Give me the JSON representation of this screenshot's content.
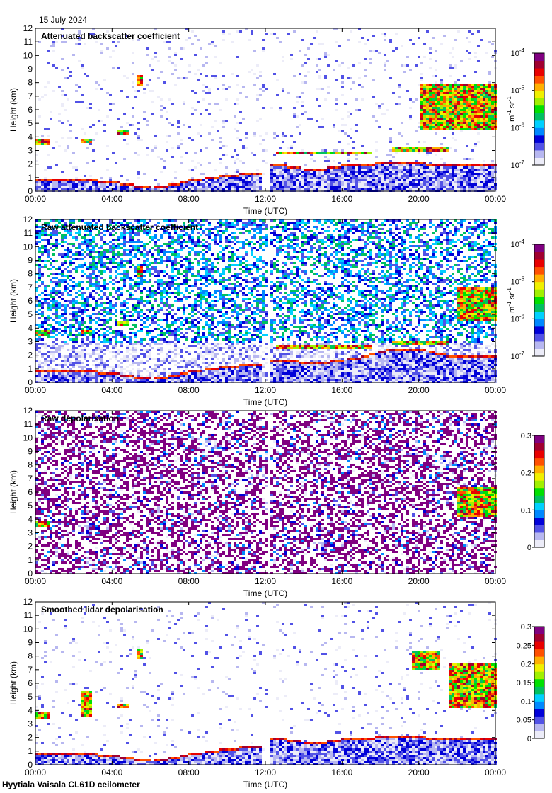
{
  "header": {
    "date": "15 July 2024"
  },
  "footer": {
    "instrument": "Hyytiala Vaisala CL61D ceilometer"
  },
  "colors": {
    "scale": [
      "#ececf8",
      "#b7b7f0",
      "#5252e6",
      "#0000d8",
      "#0088ff",
      "#00d0ff",
      "#00c060",
      "#00e000",
      "#a0f000",
      "#f0f000",
      "#ffb000",
      "#ff5000",
      "#e80000",
      "#a00030",
      "#800080"
    ],
    "gap": "#ffffff"
  },
  "chart_data": [
    {
      "type": "heatmap",
      "title": "Attenuated backscatter coefficient",
      "xlabel": "Time (UTC)",
      "ylabel": "Height (km)",
      "x_ticks": [
        "00:00",
        "04:00",
        "08:00",
        "12:00",
        "16:00",
        "20:00",
        "00:00"
      ],
      "y_ticks": [
        0,
        1,
        2,
        3,
        4,
        5,
        6,
        7,
        8,
        9,
        10,
        11,
        12
      ],
      "ylim": [
        0,
        12
      ],
      "colorbar": {
        "scale": "log",
        "range": [
          1e-07,
          0.0001
        ],
        "ticks": [
          "10",
          "10",
          "10",
          "10"
        ],
        "tick_exponents": [
          "-4",
          "-5",
          "-6",
          "-7"
        ],
        "unit": "m",
        "unit_exp": "-1",
        "unit_b": "sr",
        "unit_b_exp": "-1"
      },
      "features": [
        {
          "kind": "boundary_layer",
          "x": [
            0,
            2,
            3,
            4,
            5,
            6,
            7,
            8,
            9,
            10,
            11,
            11.8
          ],
          "y": [
            1.0,
            1.0,
            0.9,
            0.8,
            0.6,
            0.4,
            0.6,
            0.9,
            1.1,
            1.3,
            1.4,
            1.4
          ]
        },
        {
          "kind": "boundary_layer",
          "x": [
            12,
            13,
            14,
            15,
            16,
            17,
            18,
            19,
            20,
            21,
            22,
            23,
            24
          ],
          "y": [
            2.0,
            2.0,
            1.8,
            1.8,
            2.0,
            2.0,
            2.2,
            2.2,
            2.2,
            2.0,
            2.0,
            2.0,
            2.0
          ]
        },
        {
          "kind": "cloud",
          "x": [
            0,
            0.7
          ],
          "y": [
            3.5,
            4.0
          ]
        },
        {
          "kind": "cloud",
          "x": [
            2.3,
            2.9
          ],
          "y": [
            3.6,
            4.0
          ]
        },
        {
          "kind": "cloud",
          "x": [
            4.2,
            4.8
          ],
          "y": [
            4.3,
            4.6
          ]
        },
        {
          "kind": "cloud",
          "x": [
            5.2,
            5.6
          ],
          "y": [
            7.8,
            8.6
          ]
        },
        {
          "kind": "cloud",
          "x": [
            12.5,
            17.5
          ],
          "y": [
            2.8,
            3.0
          ]
        },
        {
          "kind": "cloud",
          "x": [
            18.5,
            21.5
          ],
          "y": [
            3.0,
            3.3
          ]
        },
        {
          "kind": "cloud",
          "x": [
            20.0,
            24.0
          ],
          "y": [
            4.5,
            8.0
          ]
        }
      ],
      "data_gap": [
        12.0,
        12.1
      ],
      "noise_level": 0.15
    },
    {
      "type": "heatmap",
      "title": "Raw attenuated backscatter coefficient",
      "xlabel": "Time (UTC)",
      "ylabel": "Height (km)",
      "x_ticks": [
        "00:00",
        "04:00",
        "08:00",
        "12:00",
        "16:00",
        "20:00",
        "00:00"
      ],
      "y_ticks": [
        0,
        1,
        2,
        3,
        4,
        5,
        6,
        7,
        8,
        9,
        10,
        11,
        12
      ],
      "ylim": [
        0,
        12
      ],
      "colorbar": {
        "scale": "log",
        "range": [
          1e-07,
          0.0001
        ],
        "ticks": [
          "10",
          "10",
          "10",
          "10"
        ],
        "tick_exponents": [
          "-4",
          "-5",
          "-6",
          "-7"
        ],
        "unit": "m",
        "unit_exp": "-1",
        "unit_b": "sr",
        "unit_b_exp": "-1"
      },
      "features": [
        {
          "kind": "boundary_layer",
          "x": [
            0,
            2,
            3,
            4,
            5,
            6,
            7,
            8,
            9,
            10,
            11,
            11.8
          ],
          "y": [
            1.0,
            1.0,
            0.9,
            0.8,
            0.6,
            0.4,
            0.6,
            0.9,
            1.1,
            1.3,
            1.4,
            1.4
          ]
        },
        {
          "kind": "boundary_layer",
          "x": [
            12,
            13,
            14,
            15,
            16,
            17,
            18,
            19,
            20,
            21,
            22,
            23,
            24
          ],
          "y": [
            1.8,
            1.8,
            1.6,
            1.6,
            1.8,
            2.0,
            2.4,
            2.6,
            2.6,
            2.2,
            2.0,
            2.0,
            2.0
          ]
        },
        {
          "kind": "cloud",
          "x": [
            0,
            0.7
          ],
          "y": [
            3.5,
            4.0
          ]
        },
        {
          "kind": "cloud",
          "x": [
            2.3,
            2.9
          ],
          "y": [
            3.6,
            4.0
          ]
        },
        {
          "kind": "cloud",
          "x": [
            4.2,
            4.8
          ],
          "y": [
            4.3,
            4.6
          ]
        },
        {
          "kind": "cloud",
          "x": [
            5.2,
            5.6
          ],
          "y": [
            7.8,
            8.6
          ]
        },
        {
          "kind": "cloud",
          "x": [
            12.5,
            17.5
          ],
          "y": [
            2.6,
            2.9
          ]
        },
        {
          "kind": "cloud",
          "x": [
            18.5,
            21.5
          ],
          "y": [
            2.8,
            3.2
          ]
        },
        {
          "kind": "cloud",
          "x": [
            22.0,
            24.0
          ],
          "y": [
            4.5,
            7.0
          ]
        }
      ],
      "data_gap": [
        12.0,
        12.1
      ],
      "noise_level": 1.0
    },
    {
      "type": "heatmap",
      "title": "Raw depolarisation",
      "xlabel": "Time (UTC)",
      "ylabel": "Height (km)",
      "x_ticks": [
        "00:00",
        "04:00",
        "08:00",
        "12:00",
        "16:00",
        "20:00",
        "00:00"
      ],
      "y_ticks": [
        0,
        1,
        2,
        3,
        4,
        5,
        6,
        7,
        8,
        9,
        10,
        11,
        12
      ],
      "ylim": [
        0,
        12
      ],
      "colorbar": {
        "scale": "linear",
        "range": [
          0,
          0.3
        ],
        "ticks": [
          "0.3",
          "0.2",
          "0.1",
          "0"
        ]
      },
      "features": [
        {
          "kind": "cloud",
          "x": [
            0,
            0.7
          ],
          "y": [
            3.5,
            4.0
          ]
        },
        {
          "kind": "cloud",
          "x": [
            22.0,
            24.0
          ],
          "y": [
            4.3,
            6.5
          ]
        }
      ],
      "data_gap": [
        12.0,
        12.1
      ],
      "noise_level": 1.0
    },
    {
      "type": "heatmap",
      "title": "Smoothed lidar depolarisation",
      "xlabel": "Time (UTC)",
      "ylabel": "Height (km)",
      "x_ticks": [
        "00:00",
        "04:00",
        "08:00",
        "12:00",
        "16:00",
        "20:00",
        "00:00"
      ],
      "y_ticks": [
        0,
        1,
        2,
        3,
        4,
        5,
        6,
        7,
        8,
        9,
        10,
        11,
        12
      ],
      "ylim": [
        0,
        12
      ],
      "colorbar": {
        "scale": "linear",
        "range": [
          0,
          0.3
        ],
        "ticks": [
          "0.3",
          "0.25",
          "0.2",
          "0.15",
          "0.1",
          "0.05",
          "0"
        ]
      },
      "features": [
        {
          "kind": "boundary_layer",
          "x": [
            0,
            2,
            3,
            4,
            5,
            6,
            7,
            8,
            9,
            10,
            11,
            11.8
          ],
          "y": [
            1.0,
            1.0,
            0.9,
            0.8,
            0.6,
            0.4,
            0.6,
            0.9,
            1.1,
            1.3,
            1.4,
            1.4
          ]
        },
        {
          "kind": "boundary_layer",
          "x": [
            12,
            13,
            14,
            15,
            16,
            17,
            18,
            19,
            20,
            21,
            22,
            23,
            24
          ],
          "y": [
            2.0,
            2.0,
            1.8,
            1.8,
            2.0,
            2.0,
            2.2,
            2.2,
            2.2,
            2.0,
            2.0,
            2.0,
            2.0
          ]
        },
        {
          "kind": "cloud",
          "x": [
            0,
            0.7
          ],
          "y": [
            3.5,
            4.0
          ]
        },
        {
          "kind": "cloud",
          "x": [
            2.3,
            2.9
          ],
          "y": [
            3.6,
            5.5
          ]
        },
        {
          "kind": "cloud",
          "x": [
            4.2,
            4.8
          ],
          "y": [
            4.3,
            4.6
          ]
        },
        {
          "kind": "cloud",
          "x": [
            5.2,
            5.6
          ],
          "y": [
            7.8,
            8.6
          ]
        },
        {
          "kind": "cloud",
          "x": [
            19.5,
            21.0
          ],
          "y": [
            7.0,
            8.5
          ]
        },
        {
          "kind": "cloud",
          "x": [
            21.5,
            24.0
          ],
          "y": [
            4.3,
            7.5
          ]
        }
      ],
      "data_gap": [
        12.0,
        12.1
      ],
      "noise_level": 0.1
    }
  ]
}
